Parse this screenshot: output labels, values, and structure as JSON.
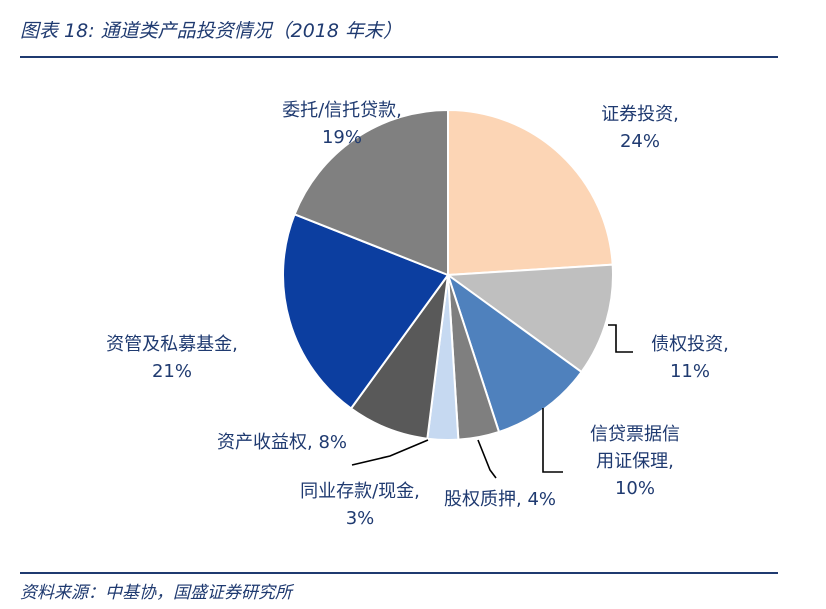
{
  "figure": {
    "title": "图表 18:  通道类产品投资情况（2018 年末）",
    "source": "资料来源：中基协，国盛证券研究所"
  },
  "chart_data": {
    "type": "pie",
    "title": "",
    "series": [
      {
        "slices": [
          {
            "label": "证券投资",
            "value": 24,
            "display": "24%",
            "color": "#fcd5b5"
          },
          {
            "label": "债权投资",
            "value": 11,
            "display": "11%",
            "color": "#bfbfbf"
          },
          {
            "label": "信贷票据信用证保理",
            "label_lines": [
              "信贷票据信",
              "用证保理,"
            ],
            "value": 10,
            "display": "10%",
            "color": "#4f81bd"
          },
          {
            "label": "股权质押",
            "value": 4,
            "display": "4%",
            "color": "#7f7f7f"
          },
          {
            "label": "同业存款/现金",
            "value": 3,
            "display": "3%",
            "color": "#c6d9f1"
          },
          {
            "label": "资产收益权",
            "value": 8,
            "display": "8%",
            "color": "#595959"
          },
          {
            "label": "资管及私募基金",
            "value": 21,
            "display": "21%",
            "color": "#0c3ea0"
          },
          {
            "label": "委托/信托贷款",
            "value": 19,
            "display": "19%",
            "color": "#808080"
          }
        ]
      }
    ],
    "start_angle": "12 o'clock",
    "direction": "clockwise",
    "legend": "none"
  }
}
